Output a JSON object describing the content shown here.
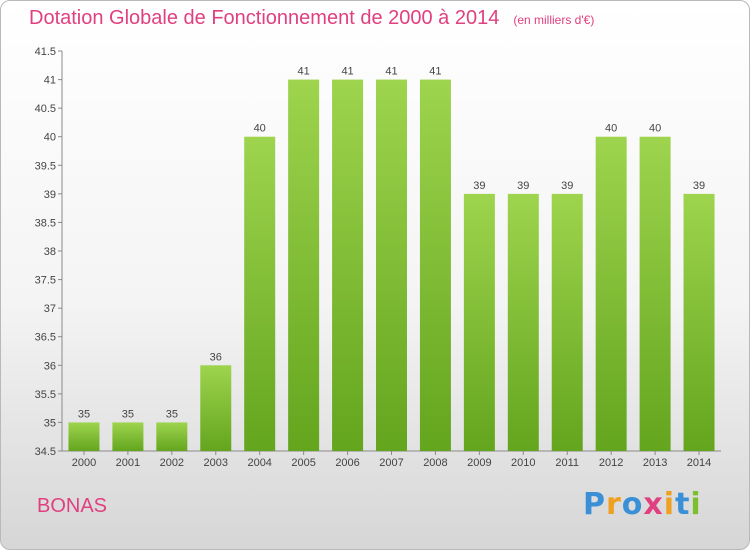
{
  "chart_data": {
    "type": "bar",
    "title": "Dotation Globale de Fonctionnement de 2000 à 2014",
    "subtitle": "(en milliers d'€)",
    "categories": [
      "2000",
      "2001",
      "2002",
      "2003",
      "2004",
      "2005",
      "2006",
      "2007",
      "2008",
      "2009",
      "2010",
      "2011",
      "2012",
      "2013",
      "2014"
    ],
    "values": [
      35,
      35,
      35,
      36,
      40,
      41,
      41,
      41,
      41,
      39,
      39,
      39,
      40,
      40,
      39
    ],
    "ylim": [
      34.5,
      41.5
    ],
    "yticks": [
      "34.5",
      "35",
      "35.5",
      "36",
      "36.5",
      "37",
      "37.5",
      "38",
      "38.5",
      "39",
      "39.5",
      "40",
      "40.5",
      "41",
      "41.5"
    ],
    "xlabel": "",
    "ylabel": "",
    "grid": false,
    "bar_color": "#7bbf2e"
  },
  "place_name": "BONAS",
  "brand": {
    "letters": [
      "P",
      "r",
      "o",
      "x",
      "i",
      "t",
      "i"
    ],
    "colors": [
      "#3a8fd6",
      "#f0a020",
      "#3a8fd6",
      "#e04080",
      "#f0a020",
      "#3a8fd6",
      "#7bbf2e"
    ]
  }
}
